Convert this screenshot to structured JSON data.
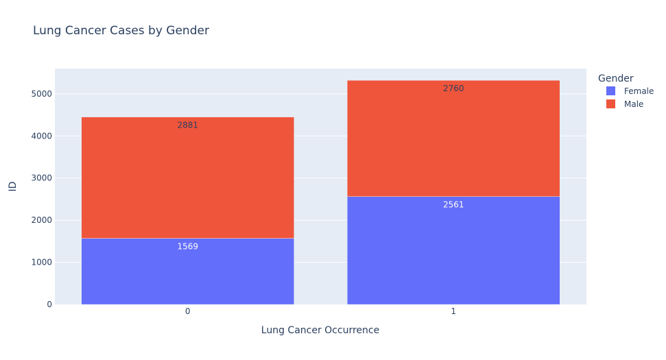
{
  "chart_data": {
    "type": "bar",
    "barmode": "stack",
    "title": "Lung Cancer Cases by Gender",
    "xlabel": "Lung Cancer Occurrence",
    "ylabel": "ID",
    "categories": [
      "0",
      "1"
    ],
    "series": [
      {
        "name": "Female",
        "values": [
          1569,
          2561
        ],
        "color": "#636efa",
        "label_color": "#ffffff"
      },
      {
        "name": "Male",
        "values": [
          2881,
          2760
        ],
        "color": "#ef553b",
        "label_color": "#2a3f5f"
      }
    ],
    "ylim": [
      0,
      5600
    ],
    "yticks": [
      0,
      1000,
      2000,
      3000,
      4000,
      5000
    ],
    "grid": true,
    "legend_title": "Gender",
    "legend_position": "top-right",
    "plot_background": "#e5ecf6"
  }
}
